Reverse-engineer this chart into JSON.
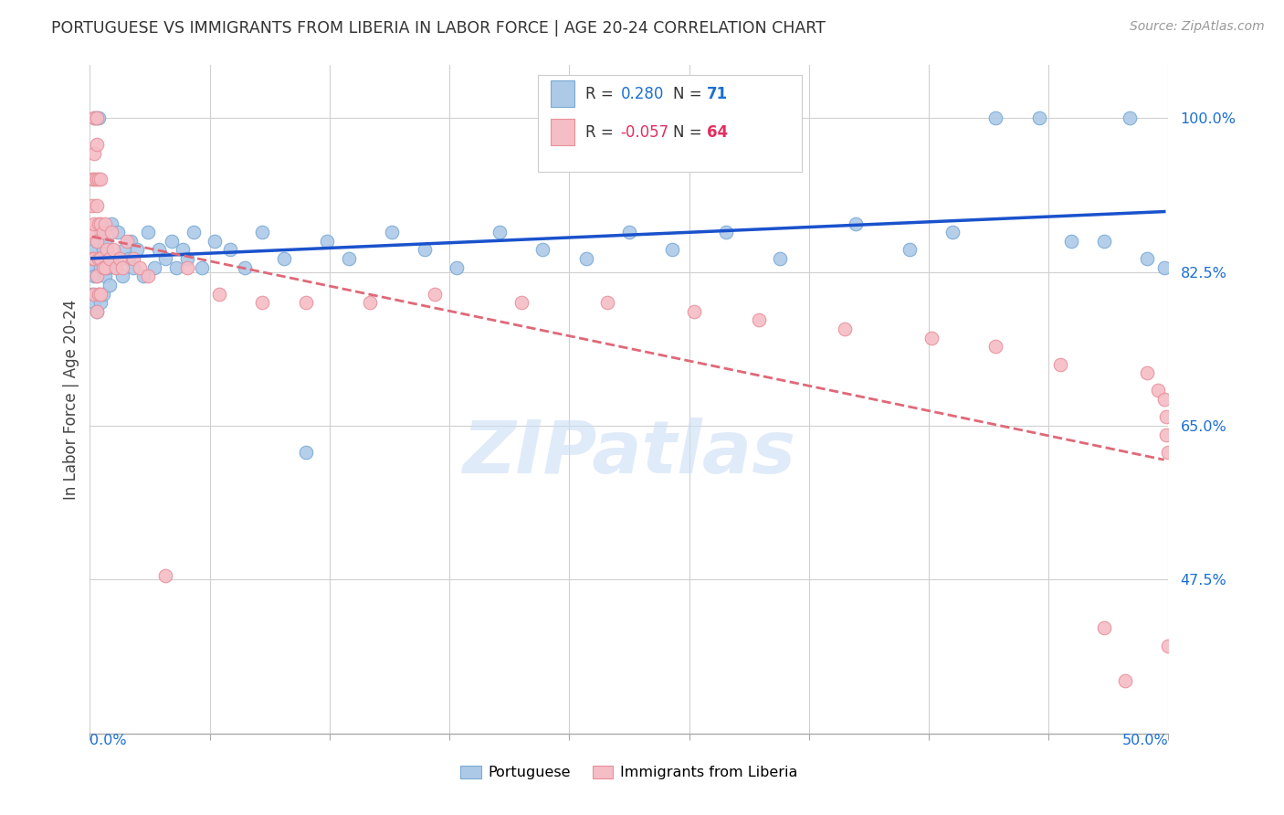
{
  "title": "PORTUGUESE VS IMMIGRANTS FROM LIBERIA IN LABOR FORCE | AGE 20-24 CORRELATION CHART",
  "source": "Source: ZipAtlas.com",
  "ylabel": "In Labor Force | Age 20-24",
  "xlim": [
    0.0,
    0.5
  ],
  "ylim": [
    0.3,
    1.06
  ],
  "legend_blue_label": "Portuguese",
  "legend_pink_label": "Immigrants from Liberia",
  "R_blue": 0.28,
  "N_blue": 71,
  "R_pink": -0.057,
  "N_pink": 64,
  "blue_color": "#adc9e8",
  "blue_edge": "#7aaad4",
  "pink_color": "#f5bdc6",
  "pink_edge": "#e8909a",
  "blue_line_color": "#1a52cc",
  "pink_line_color": "#e06878",
  "watermark": "ZIPatlas",
  "ytick_vals": [
    0.475,
    0.65,
    0.825,
    1.0
  ],
  "ytick_labels": [
    "47.5%",
    "65.0%",
    "82.5%",
    "100.0%"
  ],
  "blue_x": [
    0.001,
    0.001,
    0.002,
    0.002,
    0.002,
    0.002,
    0.003,
    0.003,
    0.003,
    0.003,
    0.004,
    0.004,
    0.004,
    0.005,
    0.005,
    0.005,
    0.006,
    0.006,
    0.007,
    0.007,
    0.008,
    0.009,
    0.01,
    0.011,
    0.012,
    0.013,
    0.015,
    0.016,
    0.018,
    0.019,
    0.02,
    0.022,
    0.025,
    0.027,
    0.03,
    0.032,
    0.035,
    0.038,
    0.04,
    0.043,
    0.045,
    0.048,
    0.052,
    0.058,
    0.065,
    0.072,
    0.08,
    0.09,
    0.1,
    0.11,
    0.12,
    0.14,
    0.155,
    0.17,
    0.19,
    0.21,
    0.23,
    0.25,
    0.27,
    0.295,
    0.32,
    0.355,
    0.38,
    0.4,
    0.42,
    0.44,
    0.455,
    0.47,
    0.482,
    0.49,
    0.498
  ],
  "blue_y": [
    0.8,
    0.83,
    0.79,
    0.82,
    0.85,
    1.0,
    0.78,
    0.82,
    0.86,
    1.0,
    0.8,
    0.84,
    1.0,
    0.79,
    0.83,
    0.87,
    0.8,
    0.85,
    0.82,
    0.86,
    0.83,
    0.81,
    0.88,
    0.84,
    0.83,
    0.87,
    0.82,
    0.85,
    0.84,
    0.86,
    0.83,
    0.85,
    0.82,
    0.87,
    0.83,
    0.85,
    0.84,
    0.86,
    0.83,
    0.85,
    0.84,
    0.87,
    0.83,
    0.86,
    0.85,
    0.83,
    0.87,
    0.84,
    0.62,
    0.86,
    0.84,
    0.87,
    0.85,
    0.83,
    0.87,
    0.85,
    0.84,
    0.87,
    0.85,
    0.87,
    0.84,
    0.88,
    0.85,
    0.87,
    1.0,
    1.0,
    0.86,
    0.86,
    1.0,
    0.84,
    0.83
  ],
  "pink_x": [
    0.001,
    0.001,
    0.001,
    0.001,
    0.002,
    0.002,
    0.002,
    0.002,
    0.002,
    0.002,
    0.003,
    0.003,
    0.003,
    0.003,
    0.003,
    0.003,
    0.003,
    0.004,
    0.004,
    0.004,
    0.004,
    0.005,
    0.005,
    0.005,
    0.005,
    0.006,
    0.006,
    0.007,
    0.007,
    0.008,
    0.009,
    0.01,
    0.011,
    0.012,
    0.014,
    0.015,
    0.017,
    0.02,
    0.023,
    0.027,
    0.035,
    0.045,
    0.06,
    0.08,
    0.1,
    0.13,
    0.16,
    0.2,
    0.24,
    0.28,
    0.31,
    0.35,
    0.39,
    0.42,
    0.45,
    0.47,
    0.48,
    0.49,
    0.495,
    0.498,
    0.499,
    0.499,
    0.5,
    0.5
  ],
  "pink_y": [
    0.84,
    0.87,
    0.9,
    0.93,
    0.8,
    0.84,
    0.88,
    0.93,
    0.96,
    1.0,
    0.78,
    0.82,
    0.86,
    0.9,
    0.93,
    0.97,
    1.0,
    0.8,
    0.84,
    0.88,
    0.93,
    0.8,
    0.84,
    0.88,
    0.93,
    0.83,
    0.87,
    0.83,
    0.88,
    0.85,
    0.84,
    0.87,
    0.85,
    0.83,
    0.84,
    0.83,
    0.86,
    0.84,
    0.83,
    0.82,
    0.48,
    0.83,
    0.8,
    0.79,
    0.79,
    0.79,
    0.8,
    0.79,
    0.79,
    0.78,
    0.77,
    0.76,
    0.75,
    0.74,
    0.72,
    0.42,
    0.36,
    0.71,
    0.69,
    0.68,
    0.66,
    0.64,
    0.62,
    0.4
  ]
}
